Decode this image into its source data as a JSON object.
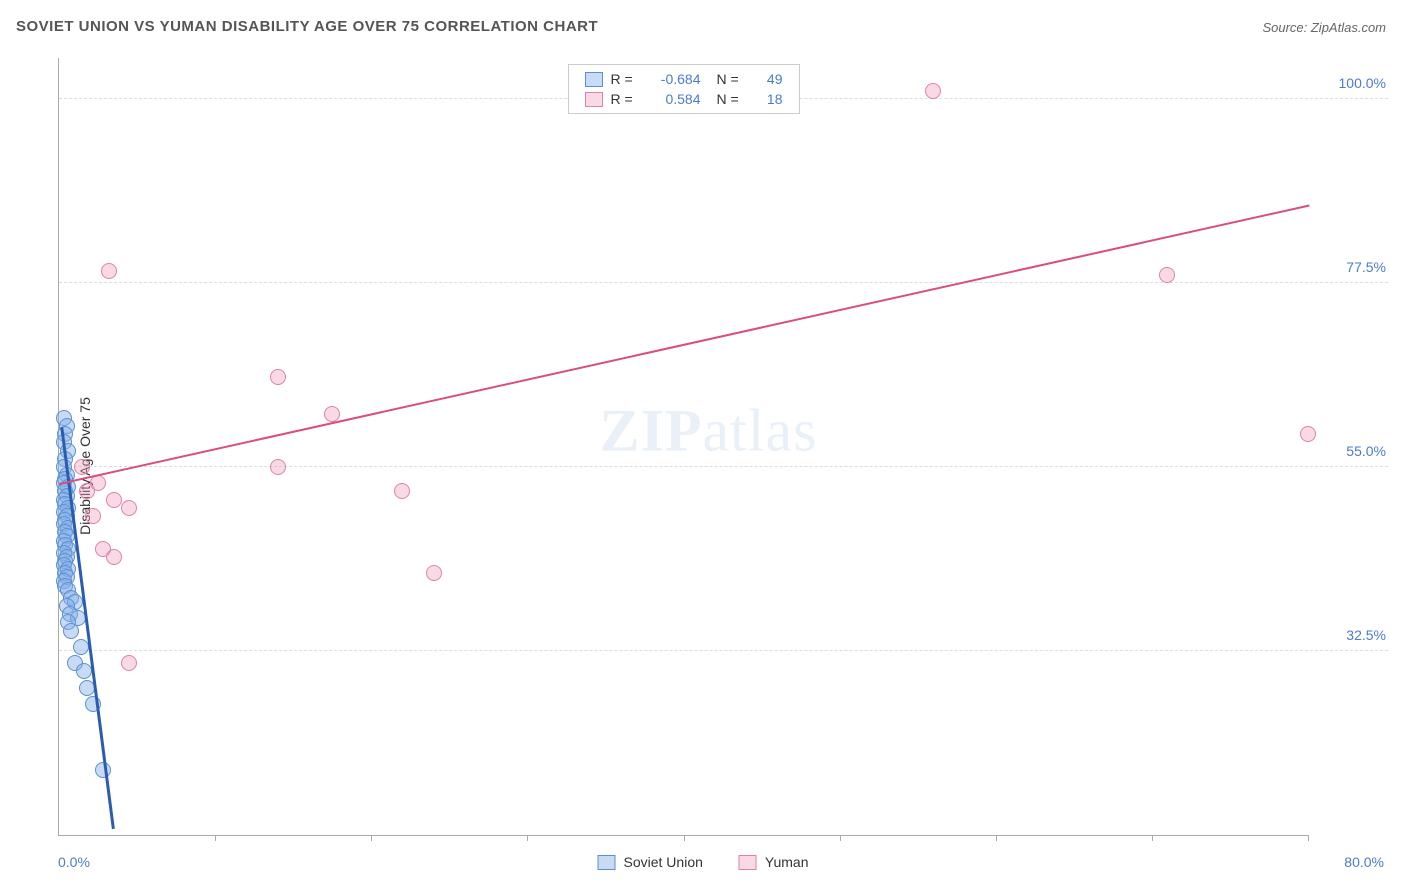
{
  "title": "SOVIET UNION VS YUMAN DISABILITY AGE OVER 75 CORRELATION CHART",
  "source": "Source: ZipAtlas.com",
  "watermark_bold": "ZIP",
  "watermark_light": "atlas",
  "y_axis_label": "Disability Age Over 75",
  "x_min_label": "0.0%",
  "x_max_label": "80.0%",
  "chart": {
    "type": "scatter",
    "xlim": [
      0,
      80
    ],
    "ylim": [
      10,
      105
    ],
    "y_ticks": [
      {
        "value": 32.5,
        "label": "32.5%"
      },
      {
        "value": 55.0,
        "label": "55.0%"
      },
      {
        "value": 77.5,
        "label": "77.5%"
      },
      {
        "value": 100.0,
        "label": "100.0%"
      }
    ],
    "x_tick_positions": [
      10,
      20,
      30,
      40,
      50,
      60,
      70,
      80
    ],
    "grid_color": "#dddddd",
    "axis_color": "#aaaaaa",
    "background_color": "#ffffff",
    "point_radius": 8,
    "point_border_width": 1.2,
    "series": [
      {
        "name": "Soviet Union",
        "fill_color": "rgba(130, 175, 230, 0.45)",
        "border_color": "#5b8fd4",
        "r_value": "-0.684",
        "n_value": "49",
        "trend": {
          "x1": 0.2,
          "y1": 60,
          "x2": 3.5,
          "y2": 11,
          "color": "#2a5db0",
          "width": 2.5
        },
        "points": [
          [
            0.3,
            61
          ],
          [
            0.5,
            60
          ],
          [
            0.4,
            59
          ],
          [
            0.3,
            58
          ],
          [
            0.6,
            57
          ],
          [
            0.4,
            56
          ],
          [
            0.3,
            55
          ],
          [
            0.5,
            54
          ],
          [
            0.4,
            53.5
          ],
          [
            0.3,
            53
          ],
          [
            0.6,
            52.5
          ],
          [
            0.4,
            52
          ],
          [
            0.5,
            51.5
          ],
          [
            0.3,
            51
          ],
          [
            0.4,
            50.5
          ],
          [
            0.6,
            50
          ],
          [
            0.3,
            49.5
          ],
          [
            0.5,
            49
          ],
          [
            0.4,
            48.5
          ],
          [
            0.3,
            48
          ],
          [
            0.6,
            47.5
          ],
          [
            0.4,
            47
          ],
          [
            0.5,
            46.5
          ],
          [
            0.3,
            46
          ],
          [
            0.4,
            45.5
          ],
          [
            0.6,
            45
          ],
          [
            0.3,
            44.5
          ],
          [
            0.5,
            44
          ],
          [
            0.4,
            43.5
          ],
          [
            0.3,
            43
          ],
          [
            0.6,
            42.5
          ],
          [
            0.4,
            42
          ],
          [
            0.5,
            41.5
          ],
          [
            0.3,
            41
          ],
          [
            0.4,
            40.5
          ],
          [
            0.6,
            40
          ],
          [
            0.8,
            39
          ],
          [
            1.0,
            38.5
          ],
          [
            0.5,
            38
          ],
          [
            0.7,
            37
          ],
          [
            1.2,
            36.5
          ],
          [
            0.6,
            36
          ],
          [
            0.8,
            35
          ],
          [
            1.4,
            33
          ],
          [
            1.0,
            31
          ],
          [
            1.6,
            30
          ],
          [
            1.8,
            28
          ],
          [
            2.2,
            26
          ],
          [
            2.8,
            18
          ]
        ]
      },
      {
        "name": "Yuman",
        "fill_color": "rgba(240, 160, 190, 0.4)",
        "border_color": "#e081a8",
        "r_value": "0.584",
        "n_value": "18",
        "trend": {
          "x1": 0,
          "y1": 53,
          "x2": 80,
          "y2": 87,
          "color": "#d94f79",
          "width": 2
        },
        "points": [
          [
            3.2,
            79
          ],
          [
            56,
            101
          ],
          [
            71,
            78.5
          ],
          [
            80,
            59
          ],
          [
            14,
            66
          ],
          [
            17.5,
            61.5
          ],
          [
            14,
            55
          ],
          [
            22,
            52
          ],
          [
            24,
            42
          ],
          [
            1.5,
            55
          ],
          [
            2.5,
            53
          ],
          [
            1.8,
            52
          ],
          [
            3.5,
            51
          ],
          [
            4.5,
            50
          ],
          [
            2.2,
            49
          ],
          [
            2.8,
            45
          ],
          [
            3.5,
            44
          ],
          [
            4.5,
            31
          ]
        ]
      }
    ],
    "legend_top_labels": {
      "r": "R =",
      "n": "N ="
    },
    "legend_bottom": [
      "Soviet Union",
      "Yuman"
    ]
  },
  "colors": {
    "tick_label": "#4a7bd0",
    "title": "#555555",
    "source": "#666666",
    "stat_value": "#4a7bd0"
  }
}
